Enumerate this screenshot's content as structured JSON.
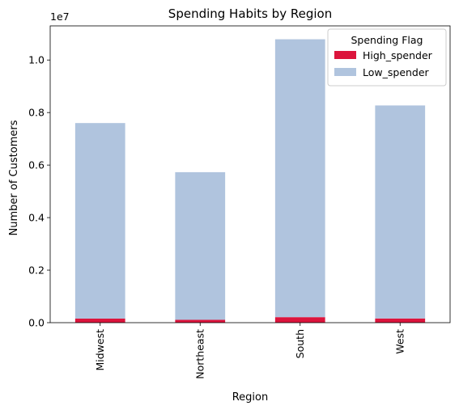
{
  "chart_data": {
    "type": "bar",
    "stacked": true,
    "title": "Spending Habits by Region",
    "xlabel": "Region",
    "ylabel": "Number of Customers",
    "y_scale_label": "1e7",
    "categories": [
      "Midwest",
      "Northeast",
      "South",
      "West"
    ],
    "series": [
      {
        "name": "High_spender",
        "color": "#dc143c",
        "values": [
          155000,
          108000,
          210000,
          160000
        ]
      },
      {
        "name": "Low_spender",
        "color": "#b0c4de",
        "values": [
          7445000,
          5622000,
          10580000,
          8110000
        ]
      }
    ],
    "ylim": [
      0,
      11300000
    ],
    "yticks": [
      0,
      2000000,
      4000000,
      6000000,
      8000000,
      10000000
    ],
    "ytick_labels": [
      "0.0",
      "0.2",
      "0.4",
      "0.6",
      "0.8",
      "1.0"
    ],
    "legend": {
      "title": "Spending Flag",
      "position": "top-right"
    },
    "grid": false
  }
}
